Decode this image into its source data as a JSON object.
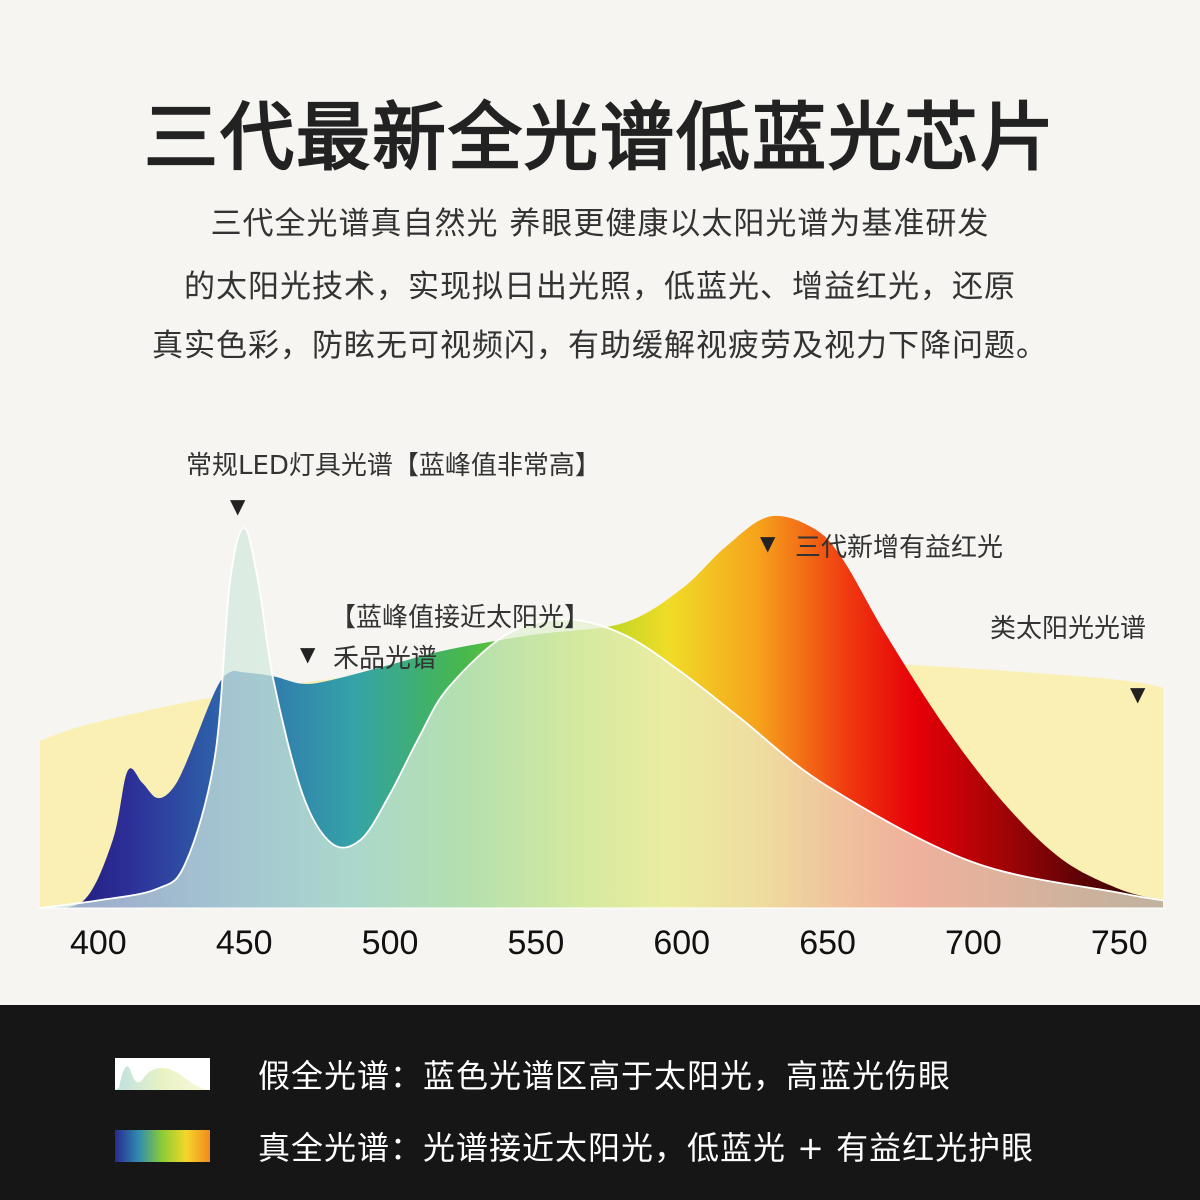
{
  "title": "三代最新全光谱低蓝光芯片",
  "description": [
    "三代全光谱真自然光 养眼更健康以太阳光谱为基准研发",
    "的太阳光技术，实现拟日出光照，低蓝光、增益红光，还原",
    "真实色彩，防眩无可视频闪，有助缓解视疲劳及视力下降问题。"
  ],
  "annotations": {
    "led_spectrum": "常规LED灯具光谱【蓝峰值非常高】",
    "red_gain": "三代新增有益红光",
    "blue_near_sun": "【蓝峰值接近太阳光】",
    "brand_spectrum": "禾品光谱",
    "sun_spectrum": "类太阳光光谱"
  },
  "legend": [
    {
      "label": "假全光谱：蓝色光谱区高于太阳光，高蓝光伤眼"
    },
    {
      "label": "真全光谱：光谱接近太阳光，低蓝光 + 有益红光护眼"
    }
  ],
  "chart_data": {
    "type": "area",
    "xlabel": "",
    "ylabel": "",
    "xlim": [
      380,
      765
    ],
    "ylim": [
      0,
      1.0
    ],
    "x_ticks": [
      400,
      450,
      500,
      550,
      600,
      650,
      700,
      750
    ],
    "series": [
      {
        "name": "类太阳光光谱",
        "x": [
          380,
          400,
          450,
          500,
          550,
          600,
          650,
          700,
          750,
          765
        ],
        "y": [
          0.44,
          0.49,
          0.57,
          0.62,
          0.65,
          0.66,
          0.65,
          0.63,
          0.6,
          0.58
        ]
      },
      {
        "name": "常规LED灯具光谱",
        "x": [
          380,
          400,
          420,
          430,
          440,
          445,
          450,
          455,
          460,
          470,
          480,
          490,
          500,
          510,
          520,
          540,
          560,
          580,
          600,
          620,
          650,
          700,
          750,
          765
        ],
        "y": [
          0.0,
          0.02,
          0.05,
          0.12,
          0.4,
          0.85,
          1.0,
          0.85,
          0.6,
          0.3,
          0.17,
          0.18,
          0.3,
          0.45,
          0.58,
          0.72,
          0.76,
          0.72,
          0.62,
          0.5,
          0.32,
          0.12,
          0.04,
          0.02
        ]
      },
      {
        "name": "禾品光谱",
        "x": [
          380,
          395,
          405,
          410,
          415,
          420,
          425,
          430,
          440,
          445,
          450,
          460,
          470,
          480,
          500,
          520,
          550,
          580,
          600,
          615,
          630,
          645,
          655,
          670,
          690,
          710,
          730,
          750,
          765
        ],
        "y": [
          0.0,
          0.02,
          0.18,
          0.36,
          0.33,
          0.29,
          0.31,
          0.38,
          0.57,
          0.62,
          0.62,
          0.61,
          0.59,
          0.6,
          0.64,
          0.68,
          0.72,
          0.75,
          0.84,
          0.95,
          1.03,
          1.0,
          0.92,
          0.72,
          0.48,
          0.28,
          0.13,
          0.05,
          0.02
        ]
      }
    ]
  },
  "colors": {
    "background": "#f6f5f1",
    "sun_fill": "#faf0b4",
    "bottom_bar": "#161616"
  }
}
